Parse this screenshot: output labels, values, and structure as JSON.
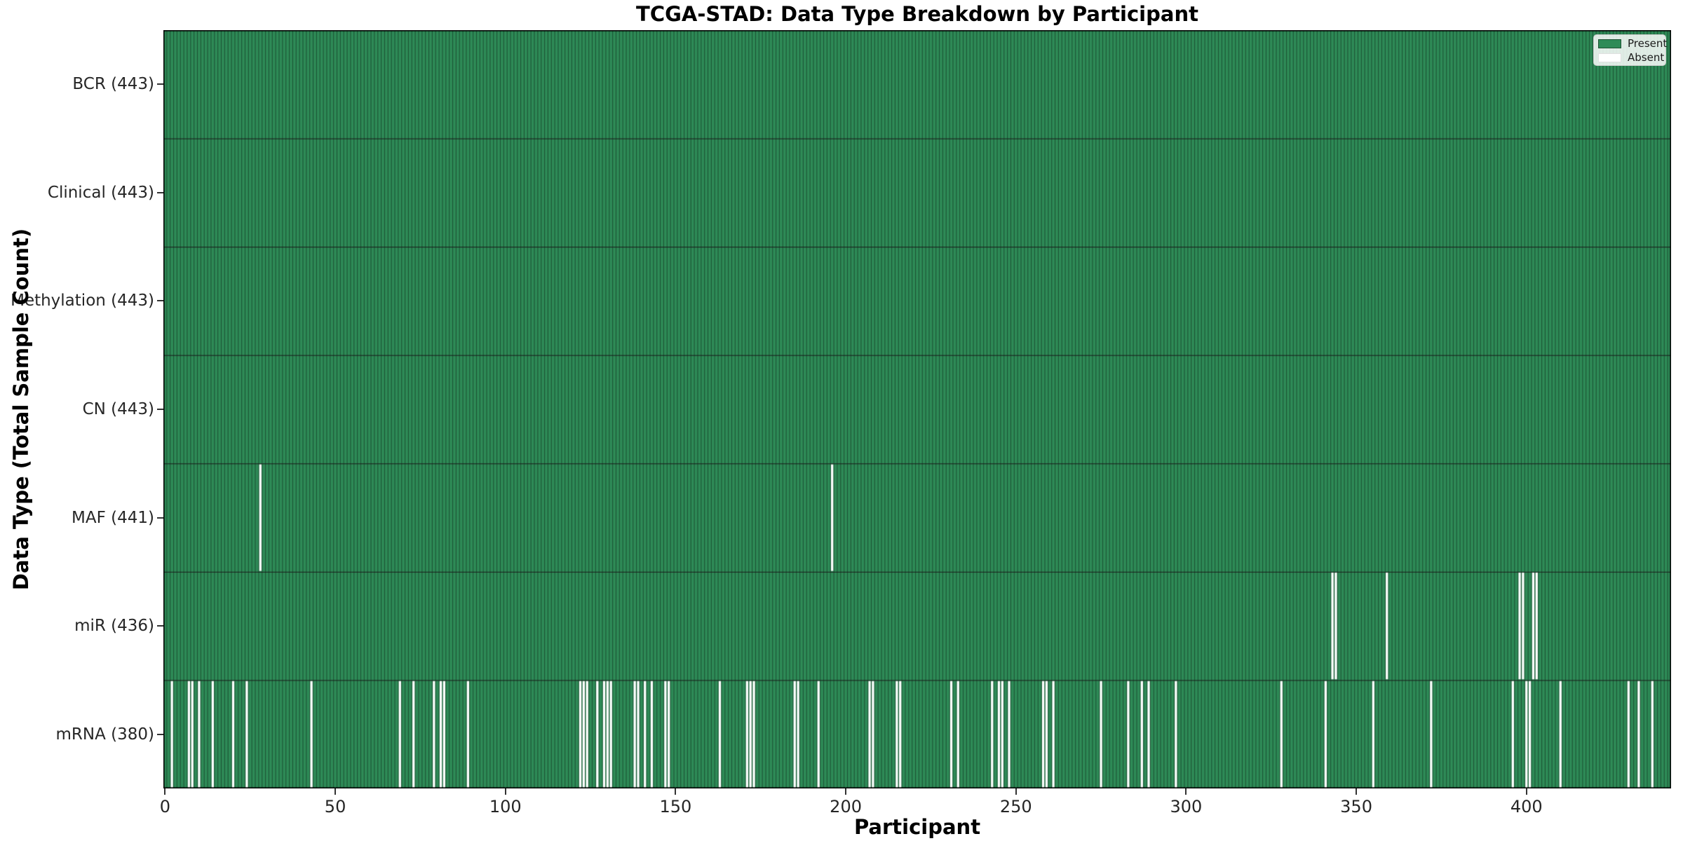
{
  "chart_data": {
    "type": "heatmap",
    "title": "TCGA-STAD: Data Type Breakdown by Participant",
    "xlabel": "Participant",
    "ylabel": "Data Type (Total Sample Count)",
    "n_participants": 443,
    "xlim": [
      0,
      443
    ],
    "x_ticks": [
      0,
      50,
      100,
      150,
      200,
      250,
      300,
      350,
      400
    ],
    "grid": false,
    "legend_position": "upper right",
    "legend": [
      {
        "label": "Present",
        "color": "#2e8b57"
      },
      {
        "label": "Absent",
        "color": "#ffffff"
      }
    ],
    "colors": {
      "present": "#2e8b57",
      "absent": "#ffffff",
      "cell_edge": "#1d5435",
      "row_divider": "#1a1a1a",
      "plot_border": "#000000"
    },
    "rows": [
      {
        "label": "BCR (443)",
        "total": 443,
        "absent": []
      },
      {
        "label": "Clinical (443)",
        "total": 443,
        "absent": []
      },
      {
        "label": "Methylation (443)",
        "total": 443,
        "absent": []
      },
      {
        "label": "CN (443)",
        "total": 443,
        "absent": []
      },
      {
        "label": "MAF (441)",
        "total": 441,
        "absent": [
          28,
          196
        ]
      },
      {
        "label": "miR (436)",
        "total": 436,
        "absent": [
          343,
          344,
          359,
          398,
          399,
          402,
          403
        ]
      },
      {
        "label": "mRNA (380)",
        "total": 380,
        "absent": [
          2,
          7,
          8,
          10,
          14,
          20,
          24,
          43,
          69,
          73,
          79,
          81,
          82,
          89,
          122,
          123,
          124,
          127,
          129,
          130,
          131,
          138,
          139,
          141,
          143,
          147,
          148,
          163,
          171,
          172,
          173,
          185,
          186,
          192,
          207,
          208,
          215,
          216,
          231,
          233,
          243,
          245,
          246,
          248,
          258,
          259,
          261,
          275,
          283,
          287,
          289,
          297,
          328,
          341,
          355,
          372,
          396,
          400,
          401,
          410,
          430,
          433,
          437
        ]
      }
    ]
  }
}
